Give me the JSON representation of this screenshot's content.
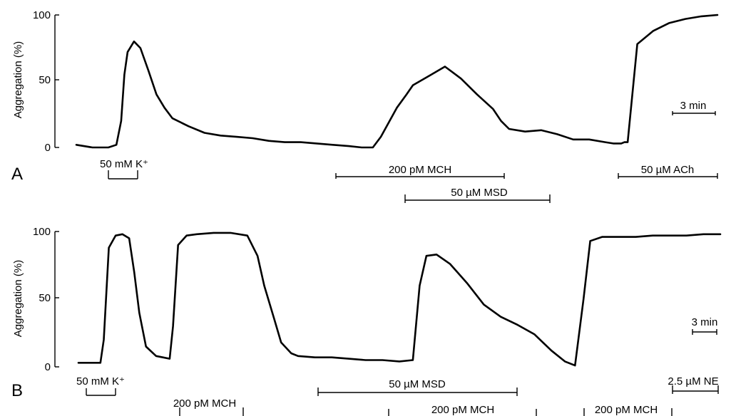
{
  "chart_data": [
    {
      "type": "line",
      "panel": "A",
      "ylabel": "Aggregation  (%)",
      "ylim": [
        0,
        100
      ],
      "yticks": [
        0,
        50,
        100
      ],
      "time_unit": "min",
      "x": [
        0,
        1,
        2,
        2.5,
        2.8,
        3.0,
        3.2,
        3.6,
        4.0,
        4.5,
        5,
        5.5,
        6,
        7,
        8,
        9,
        10,
        11,
        12,
        13,
        14,
        15,
        16,
        17,
        17.8,
        18.5,
        19,
        20,
        20.6,
        21,
        22,
        23,
        24,
        25,
        26,
        26.5,
        27,
        28,
        29,
        30,
        31,
        32,
        33,
        33.5,
        34,
        34.2,
        34.4,
        35,
        36,
        37,
        38,
        39,
        40
      ],
      "series": [
        {
          "values": [
            2,
            0,
            0,
            2,
            20,
            55,
            72,
            80,
            75,
            58,
            40,
            30,
            22,
            16,
            11,
            9,
            8,
            7,
            5,
            4,
            4,
            3,
            2,
            1,
            0,
            0,
            8,
            30,
            40,
            47,
            54,
            61,
            52,
            40,
            29,
            20,
            14,
            12,
            13,
            10,
            6,
            6,
            4,
            3,
            3,
            4,
            4,
            78,
            88,
            94,
            97,
            99,
            100
          ]
        }
      ],
      "scale_bar": "3 min",
      "drug_bars": [
        {
          "label": "50 mM K⁺",
          "start": 2.9,
          "end": 4.0
        },
        {
          "label": "200 pM MCH",
          "start": 18.3,
          "end": 28.0
        },
        {
          "label": "50 µM MSD",
          "start": 22.3,
          "end": 30.7
        },
        {
          "label": "50 µM ACh",
          "start": 34.5,
          "end": 40.2
        }
      ]
    },
    {
      "type": "line",
      "panel": "B",
      "ylabel": "Aggregation  (%)",
      "ylim": [
        0,
        100
      ],
      "yticks": [
        0,
        50,
        100
      ],
      "time_unit": "min",
      "x": [
        0,
        1,
        1.3,
        1.5,
        1.8,
        2.2,
        2.6,
        3.0,
        3.3,
        3.6,
        4.0,
        4.6,
        5,
        5.4,
        5.6,
        5.9,
        6.4,
        7,
        8,
        9,
        10,
        10.6,
        11,
        11.6,
        12,
        12.6,
        13,
        14,
        15,
        16,
        17,
        18,
        19,
        19.8,
        20.2,
        20.6,
        21.2,
        22,
        23,
        24,
        25,
        26,
        27,
        28,
        28.8,
        29.4,
        29.9,
        30.3,
        31,
        32,
        33,
        34,
        35,
        36,
        37,
        38
      ],
      "series": [
        {
          "values": [
            3,
            3,
            3,
            20,
            88,
            97,
            98,
            95,
            70,
            40,
            15,
            8,
            7,
            6,
            30,
            90,
            97,
            98,
            99,
            99,
            97,
            82,
            60,
            35,
            18,
            10,
            8,
            7,
            7,
            6,
            5,
            5,
            4,
            5,
            60,
            82,
            83,
            76,
            62,
            46,
            37,
            31,
            24,
            12,
            4,
            1,
            50,
            93,
            96,
            96,
            96,
            97,
            97,
            97,
            98,
            98
          ]
        }
      ],
      "scale_bar": "3 min",
      "drug_bars": [
        {
          "label": "50 mM K⁺",
          "start": 1.0,
          "end": 2.0
        },
        {
          "label": "200 pM MCH",
          "start": 5.0,
          "end": 8.6
        },
        {
          "label": "50 µM MSD",
          "start": 13.5,
          "end": 28.7
        },
        {
          "label": "200 pM MCH",
          "start": 19.8,
          "end": 25.4
        },
        {
          "label": "200 pM MCH",
          "start": 30.5,
          "end": 35.3
        },
        {
          "label": "2.5 µM NE",
          "start": 35.3,
          "end": 38.0
        }
      ]
    }
  ]
}
